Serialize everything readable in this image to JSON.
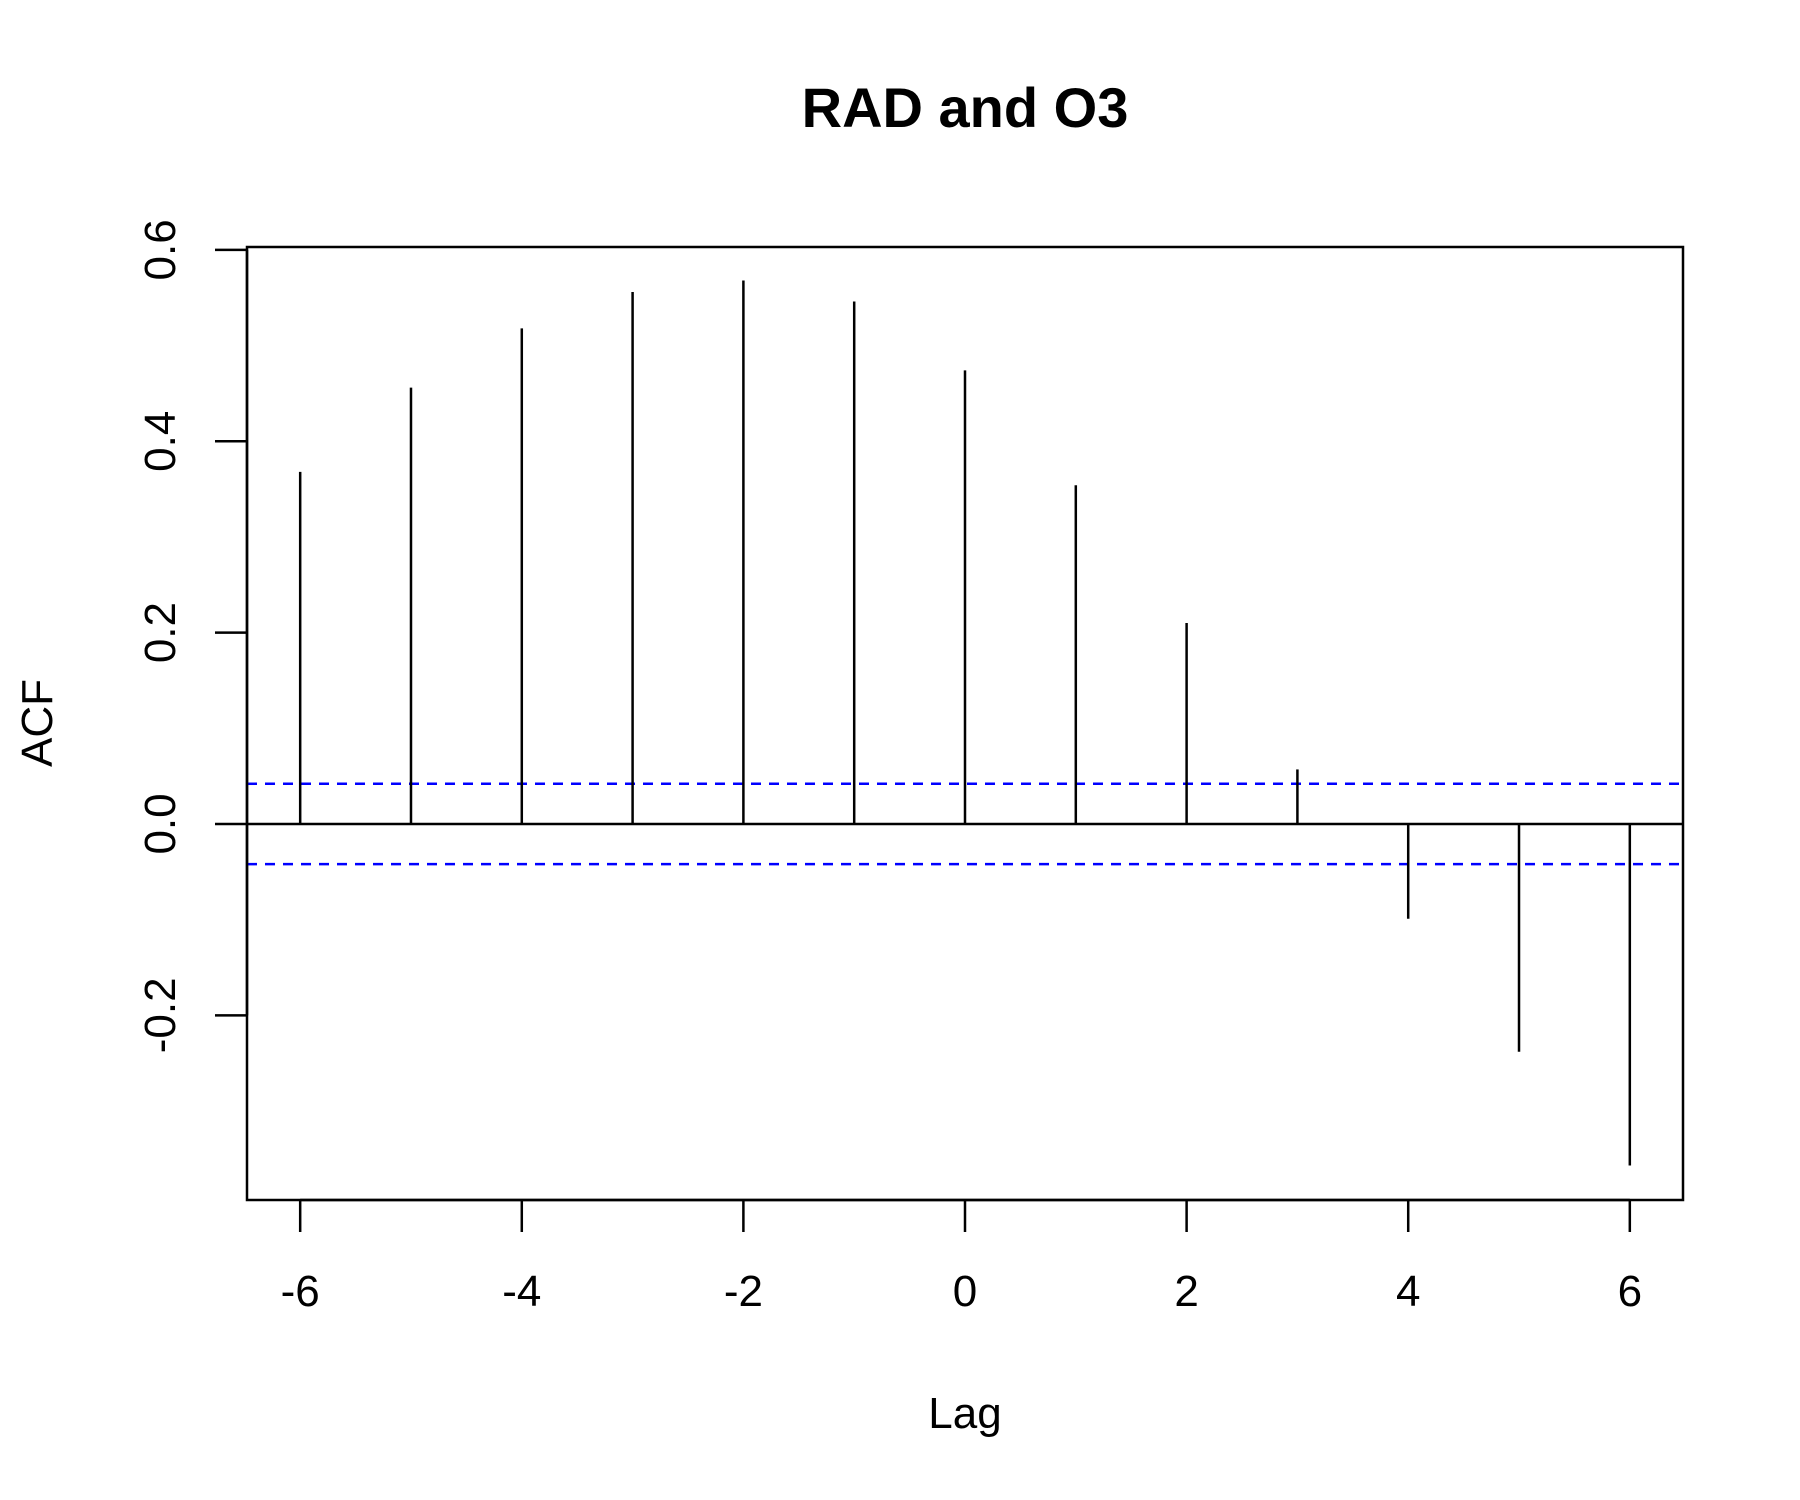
{
  "chart_data": {
    "type": "bar",
    "title": "RAD and O3",
    "xlabel": "Lag",
    "ylabel": "ACF",
    "x": [
      -6,
      -5,
      -4,
      -3,
      -2,
      -1,
      0,
      1,
      2,
      3,
      4,
      5,
      6
    ],
    "values": [
      0.368,
      0.456,
      0.518,
      0.556,
      0.568,
      0.546,
      0.474,
      0.354,
      0.21,
      0.057,
      -0.099,
      -0.238,
      -0.357
    ],
    "xticks": [
      "-6",
      "-4",
      "-2",
      "0",
      "2",
      "4",
      "6"
    ],
    "yticks": [
      "-0.2",
      "0.0",
      "0.2",
      "0.4",
      "0.6"
    ],
    "xlim": [
      -6.48,
      6.48
    ],
    "ylim": [
      -0.393,
      0.603
    ],
    "confidence_band": [
      0.042,
      -0.042
    ],
    "zero_line": true,
    "grid": false,
    "colors": {
      "bars": "#000000",
      "confidence_band": "#0000ff",
      "axes": "#000000"
    }
  }
}
